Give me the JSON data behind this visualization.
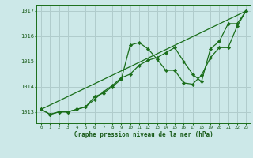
{
  "title": "Graphe pression niveau de la mer (hPa)",
  "text_color": "#1a5c1a",
  "background_color": "#cce8e8",
  "grid_color": "#b0cccc",
  "line_color": "#1a6e1a",
  "marker_color": "#1a6e1a",
  "xlim": [
    -0.5,
    23.5
  ],
  "ylim": [
    1012.55,
    1017.25
  ],
  "yticks": [
    1013,
    1014,
    1015,
    1016,
    1017
  ],
  "xticks": [
    0,
    1,
    2,
    3,
    4,
    5,
    6,
    7,
    8,
    9,
    10,
    11,
    12,
    13,
    14,
    15,
    16,
    17,
    18,
    19,
    20,
    21,
    22,
    23
  ],
  "series1_x": [
    0,
    1,
    2,
    3,
    4,
    5,
    6,
    7,
    8,
    9,
    10,
    11,
    12,
    13,
    14,
    15,
    16,
    17,
    18,
    19,
    20,
    21,
    22,
    23
  ],
  "series1_y": [
    1013.1,
    1012.9,
    1013.0,
    1013.0,
    1013.1,
    1013.2,
    1013.6,
    1013.75,
    1014.0,
    1014.3,
    1015.65,
    1015.75,
    1015.5,
    1015.1,
    1014.65,
    1014.65,
    1014.15,
    1014.1,
    1014.45,
    1015.15,
    1015.55,
    1015.55,
    1016.4,
    1017.0
  ],
  "series2_x": [
    0,
    1,
    2,
    3,
    4,
    5,
    6,
    7,
    8,
    9,
    10,
    11,
    12,
    13,
    14,
    15,
    16,
    17,
    18,
    19,
    20,
    21,
    22,
    23
  ],
  "series2_y": [
    1013.1,
    1012.9,
    1013.0,
    1013.0,
    1013.1,
    1013.2,
    1013.5,
    1013.8,
    1014.05,
    1014.35,
    1014.5,
    1014.85,
    1015.05,
    1015.15,
    1015.35,
    1015.55,
    1015.0,
    1014.5,
    1014.2,
    1015.5,
    1015.8,
    1016.5,
    1016.5,
    1017.0
  ],
  "series3_x": [
    0,
    23
  ],
  "series3_y": [
    1013.1,
    1017.0
  ]
}
